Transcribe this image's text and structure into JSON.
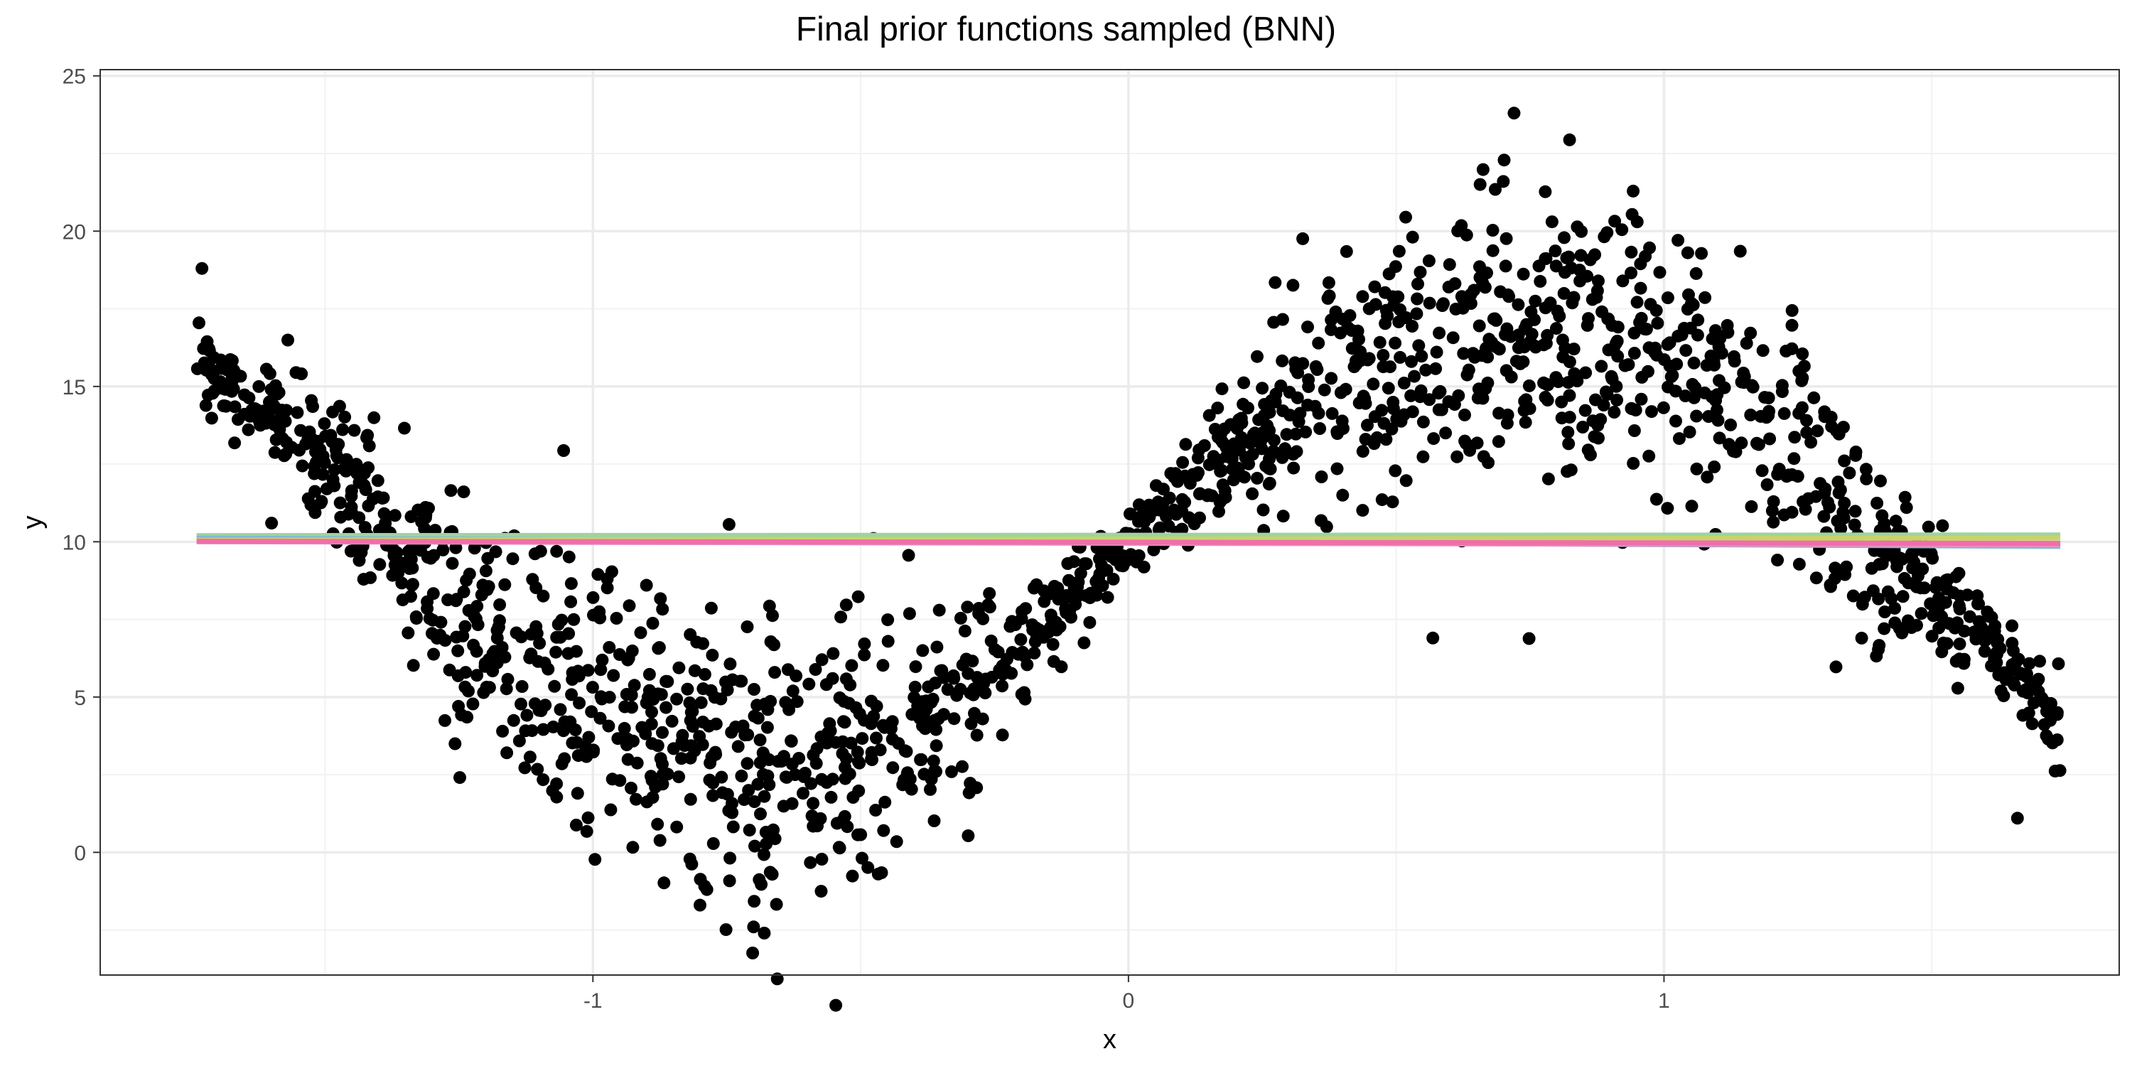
{
  "chart_data": {
    "type": "scatter",
    "title": "Final prior functions sampled (BNN)",
    "xlabel": "x",
    "ylabel": "y",
    "xlim": [
      -1.92,
      1.85
    ],
    "ylim": [
      -3.95,
      25.2
    ],
    "x_ticks": [
      {
        "value": -1,
        "label": "-1"
      },
      {
        "value": 0,
        "label": "0"
      },
      {
        "value": 1,
        "label": "1"
      }
    ],
    "y_ticks": [
      {
        "value": 0,
        "label": "0"
      },
      {
        "value": 5,
        "label": "5"
      },
      {
        "value": 10,
        "label": "10"
      },
      {
        "value": 15,
        "label": "15"
      },
      {
        "value": 20,
        "label": "20"
      },
      {
        "value": 25,
        "label": "25"
      }
    ],
    "grid": true,
    "legend": "none",
    "point_color": "#000000",
    "data_trend": {
      "description": "noisy sine-shaped cloud",
      "x_range": [
        -1.74,
        1.74
      ],
      "approx_curve": [
        [
          -1.74,
          15.6
        ],
        [
          -1.6,
          14.2
        ],
        [
          -1.45,
          11.3
        ],
        [
          -1.3,
          8.7
        ],
        [
          -1.1,
          6.0
        ],
        [
          -0.9,
          4.5
        ],
        [
          -0.75,
          3.0
        ],
        [
          -0.6,
          3.2
        ],
        [
          -0.4,
          4.4
        ],
        [
          -0.2,
          6.5
        ],
        [
          0.0,
          10.0
        ],
        [
          0.2,
          13.0
        ],
        [
          0.4,
          15.4
        ],
        [
          0.6,
          16.4
        ],
        [
          0.8,
          16.8
        ],
        [
          1.0,
          16.2
        ],
        [
          1.15,
          14.2
        ],
        [
          1.3,
          11.7
        ],
        [
          1.45,
          9.0
        ],
        [
          1.6,
          7.0
        ],
        [
          1.74,
          4.2
        ]
      ]
    },
    "series": [
      {
        "color": "#9fd39f",
        "x": [
          -1.74,
          1.74
        ],
        "y": [
          10.2,
          10.22
        ]
      },
      {
        "color": "#7fb8d6",
        "x": [
          -1.74,
          1.74
        ],
        "y": [
          10.12,
          9.85
        ]
      },
      {
        "color": "#c8d46a",
        "x": [
          -1.74,
          1.74
        ],
        "y": [
          10.05,
          10.12
        ]
      },
      {
        "color": "#e58fc2",
        "x": [
          -1.74,
          1.74
        ],
        "y": [
          10.0,
          9.9
        ]
      },
      {
        "color": "#f06eaa",
        "x": [
          -1.74,
          1.74
        ],
        "y": [
          10.02,
          9.95
        ]
      }
    ],
    "outliers": [
      {
        "x": 0.72,
        "y": 23.8
      },
      {
        "x": 0.7,
        "y": 21.6
      },
      {
        "x": -1.73,
        "y": 18.8
      },
      {
        "x": -0.68,
        "y": -2.6
      },
      {
        "x": -0.7,
        "y": -2.4
      },
      {
        "x": -0.8,
        "y": -1.7
      },
      {
        "x": 1.66,
        "y": 1.1
      },
      {
        "x": 0.95,
        "y": 20.3
      },
      {
        "x": -0.9,
        "y": 8.6
      },
      {
        "x": 0.4,
        "y": 11.5
      },
      {
        "x": -1.6,
        "y": 10.6
      }
    ]
  }
}
